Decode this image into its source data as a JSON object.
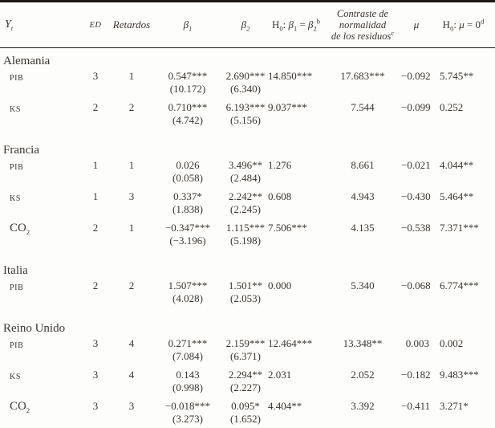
{
  "colors": {
    "background": "#fdfdfb",
    "text": "#3b3530",
    "rule": "#1b1814"
  },
  "table": {
    "header": {
      "yt": "Y_{t}",
      "ed": "ED",
      "retardos": "Retardos",
      "beta1": "β_{1}",
      "beta2": "β_{2}",
      "h0_beta": "H_{0}: ~{β}_{1} = ~{β}_{2}^{b}",
      "contraste_line1": "Contraste de",
      "contraste_line2": "normalidad",
      "contraste_line3": "de los residuos^{c}",
      "mu": "μ",
      "h0_mu": "H_{0}: ~{μ} = 0^{d}"
    },
    "groups": [
      {
        "country": "Alemania",
        "rows": [
          {
            "label": "PIB",
            "ed": "3",
            "retardos": "1",
            "beta1": "0.547***",
            "beta1_t": "(10.172)",
            "beta2": "2.690***",
            "beta2_t": "(6.340)",
            "h0_beta": "14.850***",
            "contraste": "17.683***",
            "mu": "−0.092",
            "h0_mu": "5.745**"
          },
          {
            "label": "KS",
            "ed": "2",
            "retardos": "2",
            "beta1": "0.710***",
            "beta1_t": "(4.742)",
            "beta2": "6.193***",
            "beta2_t": "(5.156)",
            "h0_beta": "9.037***",
            "contraste": "7.544",
            "mu": "−0.099",
            "h0_mu": "0.252"
          }
        ]
      },
      {
        "country": "Francia",
        "rows": [
          {
            "label": "PIB",
            "ed": "1",
            "retardos": "1",
            "beta1": "0.026",
            "beta1_t": "(0.058)",
            "beta2": "3.496**",
            "beta2_t": "(2.484)",
            "h0_beta": "1.276",
            "contraste": "8.661",
            "mu": "−0.021",
            "h0_mu": "4.044**"
          },
          {
            "label": "KS",
            "ed": "1",
            "retardos": "3",
            "beta1": "0.337*",
            "beta1_t": "(1.838)",
            "beta2": "2.242**",
            "beta2_t": "(2.245)",
            "h0_beta": "0.608",
            "contraste": "4.943",
            "mu": "−0.430",
            "h0_mu": "5.464**"
          },
          {
            "label": "CO_{2}",
            "ed": "2",
            "retardos": "1",
            "beta1": "−0.347***",
            "beta1_t": "(−3.196)",
            "beta2": "1.115***",
            "beta2_t": "(5.198)",
            "h0_beta": "7.506***",
            "contraste": "4.135",
            "mu": "−0.538",
            "h0_mu": "7.371***"
          }
        ]
      },
      {
        "country": "Italia",
        "rows": [
          {
            "label": "PIB",
            "ed": "2",
            "retardos": "2",
            "beta1": "1.507***",
            "beta1_t": "(4.028)",
            "beta2": "1.501**",
            "beta2_t": "(2.053)",
            "h0_beta": "0.000",
            "contraste": "5.340",
            "mu": "−0.068",
            "h0_mu": "6.774***"
          }
        ]
      },
      {
        "country": "Reino Unido",
        "rows": [
          {
            "label": "PIB",
            "ed": "3",
            "retardos": "4",
            "beta1": "0.271***",
            "beta1_t": "(7.084)",
            "beta2": "2.159***",
            "beta2_t": "(6.371)",
            "h0_beta": "12.464***",
            "contraste": "13.348**",
            "mu": "0.003",
            "h0_mu": "0.002"
          },
          {
            "label": "KS",
            "ed": "3",
            "retardos": "4",
            "beta1": "0.143",
            "beta1_t": "(0.998)",
            "beta2": "2.294**",
            "beta2_t": "(2.227)",
            "h0_beta": "2.031",
            "contraste": "2.052",
            "mu": "−0.182",
            "h0_mu": "9.483***"
          },
          {
            "label": "CO_{2}",
            "ed": "3",
            "retardos": "3",
            "beta1": "−0.018***",
            "beta1_t": "(3.273)",
            "beta2": "0.095*",
            "beta2_t": "(1.652)",
            "h0_beta": "4.404**",
            "contraste": "3.392",
            "mu": "−0.411",
            "h0_mu": "3.271*"
          }
        ]
      }
    ]
  }
}
